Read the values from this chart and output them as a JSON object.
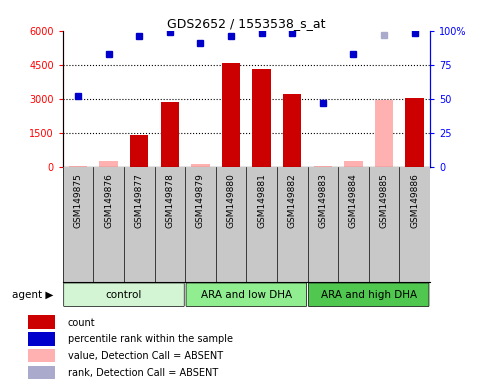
{
  "title": "GDS2652 / 1553538_s_at",
  "samples": [
    "GSM149875",
    "GSM149876",
    "GSM149877",
    "GSM149878",
    "GSM149879",
    "GSM149880",
    "GSM149881",
    "GSM149882",
    "GSM149883",
    "GSM149884",
    "GSM149885",
    "GSM149886"
  ],
  "groups": [
    {
      "label": "control",
      "start": 0,
      "end": 4,
      "color": "#d4f5d4"
    },
    {
      "label": "ARA and low DHA",
      "start": 4,
      "end": 8,
      "color": "#90ee90"
    },
    {
      "label": "ARA and high DHA",
      "start": 8,
      "end": 12,
      "color": "#50c850"
    }
  ],
  "bar_values": [
    50,
    280,
    1430,
    2880,
    120,
    4560,
    4320,
    3200,
    50,
    280,
    2950,
    3020
  ],
  "bar_absent": [
    true,
    true,
    false,
    false,
    true,
    false,
    false,
    false,
    true,
    true,
    true,
    false
  ],
  "bar_color_present": "#cc0000",
  "bar_color_absent": "#ffb0b0",
  "dot_values_pct": [
    52,
    83,
    96,
    99,
    91,
    96,
    98,
    98,
    47,
    83,
    97,
    98
  ],
  "dot_absent": [
    false,
    false,
    false,
    false,
    false,
    false,
    false,
    false,
    false,
    false,
    true,
    false
  ],
  "dot_color_present": "#0000cc",
  "dot_color_absent": "#aaaacc",
  "ylim_left": [
    0,
    6000
  ],
  "ylim_right": [
    0,
    100
  ],
  "yticks_left": [
    0,
    1500,
    3000,
    4500,
    6000
  ],
  "yticks_right": [
    0,
    25,
    50,
    75,
    100
  ],
  "legend_items": [
    {
      "label": "count",
      "color": "#cc0000"
    },
    {
      "label": "percentile rank within the sample",
      "color": "#0000cc"
    },
    {
      "label": "value, Detection Call = ABSENT",
      "color": "#ffb0b0"
    },
    {
      "label": "rank, Detection Call = ABSENT",
      "color": "#aaaacc"
    }
  ],
  "sample_bg_color": "#c8c8c8",
  "plot_bg": "#ffffff",
  "fig_bg": "#ffffff"
}
